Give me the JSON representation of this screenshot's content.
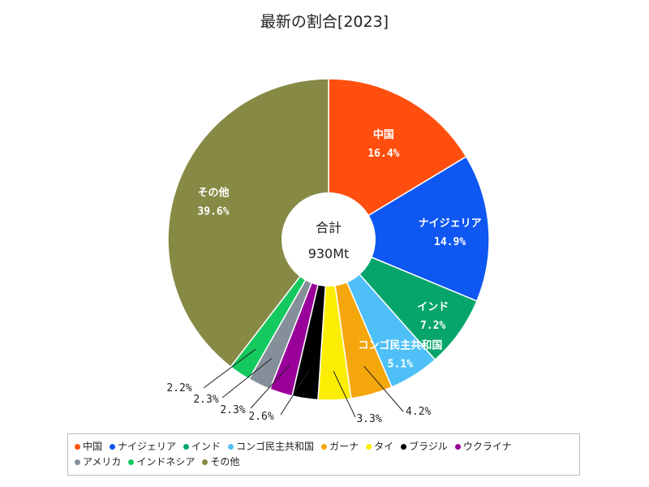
{
  "chart_data": {
    "type": "pie",
    "title": "最新の割合[2023]",
    "center_label": "合計",
    "center_value": "930Mt",
    "categories": [
      "中国",
      "ナイジェリア",
      "インド",
      "コンゴ民主共和国",
      "ガーナ",
      "タイ",
      "ブラジル",
      "ウクライナ",
      "アメリカ",
      "インドネシア",
      "その他"
    ],
    "values": [
      16.4,
      14.9,
      7.2,
      5.1,
      4.2,
      3.3,
      2.6,
      2.3,
      2.3,
      2.2,
      39.6
    ],
    "value_labels": [
      "16.4%",
      "14.9%",
      "7.2%",
      "5.1%",
      "4.2%",
      "3.3%",
      "2.6%",
      "2.3%",
      "2.3%",
      "2.2%",
      "39.6%"
    ],
    "colors": [
      "#ff4e0d",
      "#0f57f2",
      "#05a56b",
      "#4fc0f7",
      "#f5a60a",
      "#fbee00",
      "#000000",
      "#990099",
      "#858f99",
      "#14c95e",
      "#868a44"
    ],
    "legend_position": "bottom"
  }
}
